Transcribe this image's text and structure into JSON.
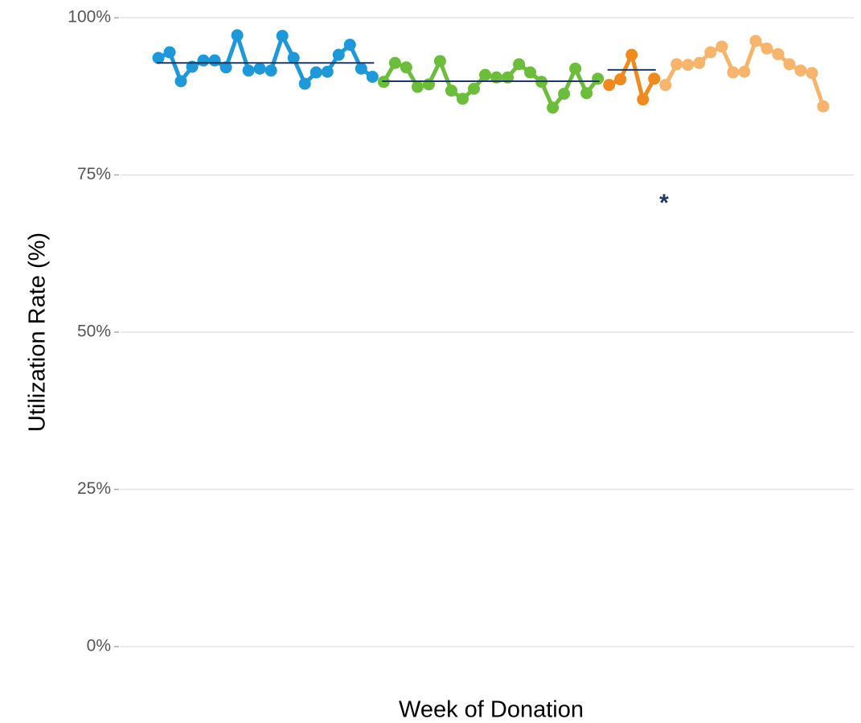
{
  "chart_data": {
    "type": "line",
    "xlabel": "Week of Donation",
    "ylabel": "Utilization Rate (%)",
    "categories": [
      null,
      null,
      null,
      null,
      null,
      null,
      null,
      null,
      null,
      null,
      null,
      null,
      null,
      null,
      null,
      null,
      null,
      null,
      null,
      null,
      null,
      null,
      null,
      null,
      null,
      null,
      null,
      null,
      null,
      null,
      null,
      null,
      null,
      null,
      null,
      null,
      null,
      null,
      null,
      null,
      null,
      null,
      null,
      null,
      null,
      null,
      null,
      null,
      null,
      null,
      null,
      null,
      null,
      null,
      null,
      null,
      null,
      null,
      null,
      null
    ],
    "series": [
      {
        "color": "#1e98d8",
        "values": [
          93.6,
          94.5,
          89.9,
          92.2,
          93.2,
          93.2,
          92.1,
          97.2,
          91.6,
          91.9,
          91.6,
          97.1,
          93.6,
          89.5,
          91.3,
          91.4,
          94.1,
          95.7,
          91.9,
          90.6,
          null,
          null,
          null,
          null,
          null,
          null,
          null,
          null,
          null,
          null,
          null,
          null,
          null,
          null,
          null,
          null,
          null,
          null,
          null,
          null,
          null,
          null,
          null,
          null,
          null,
          null,
          null,
          null,
          null,
          null,
          null,
          null,
          null,
          null,
          null,
          null,
          null,
          null,
          null,
          null
        ]
      },
      {
        "color": "#6dbd3c",
        "values": [
          null,
          null,
          null,
          null,
          null,
          null,
          null,
          null,
          null,
          null,
          null,
          null,
          null,
          null,
          null,
          null,
          null,
          null,
          null,
          null,
          89.8,
          92.8,
          92.1,
          89.0,
          89.4,
          93.1,
          88.4,
          87.1,
          88.7,
          90.9,
          90.5,
          90.5,
          92.6,
          91.3,
          89.8,
          85.7,
          87.9,
          91.9,
          88.0,
          90.3,
          null,
          null,
          null,
          null,
          null,
          null,
          null,
          null,
          null,
          null,
          null,
          null,
          null,
          null,
          null,
          null,
          null,
          null,
          null,
          null
        ]
      },
      {
        "color": "#f08a1f",
        "values": [
          null,
          null,
          null,
          null,
          null,
          null,
          null,
          null,
          null,
          null,
          null,
          null,
          null,
          null,
          null,
          null,
          null,
          null,
          null,
          null,
          null,
          null,
          null,
          null,
          null,
          null,
          null,
          null,
          null,
          null,
          null,
          null,
          null,
          null,
          null,
          null,
          null,
          null,
          null,
          null,
          89.3,
          90.2,
          94.1,
          87.0,
          90.3,
          null,
          null,
          null,
          null,
          null,
          null,
          null,
          null,
          null,
          null,
          null,
          null,
          null,
          null,
          null
        ]
      },
      {
        "color": "#f6b46c",
        "values": [
          null,
          null,
          null,
          null,
          null,
          null,
          null,
          null,
          null,
          null,
          null,
          null,
          null,
          null,
          null,
          null,
          null,
          null,
          null,
          null,
          null,
          null,
          null,
          null,
          null,
          null,
          null,
          null,
          null,
          null,
          null,
          null,
          null,
          null,
          null,
          null,
          null,
          null,
          null,
          null,
          null,
          null,
          null,
          null,
          null,
          89.3,
          92.6,
          92.5,
          92.8,
          94.5,
          95.4,
          91.3,
          91.4,
          96.3,
          95.1,
          94.2,
          92.6,
          91.6,
          91.2,
          85.9
        ]
      }
    ],
    "mean_lines": [
      {
        "value": 92.8,
        "color": "#1f3a60"
      },
      {
        "value": 89.9,
        "color": "#1f3a60"
      },
      {
        "value": 91.7,
        "color": "#1f3a60"
      }
    ],
    "annotation": "*",
    "ylim": [
      0,
      100
    ],
    "yticks": [
      {
        "value": 0,
        "label": "0%"
      },
      {
        "value": 25,
        "label": "25%"
      },
      {
        "value": 50,
        "label": "50%"
      },
      {
        "value": 75,
        "label": "75%"
      },
      {
        "value": 100,
        "label": "100%"
      }
    ],
    "grid": true
  }
}
